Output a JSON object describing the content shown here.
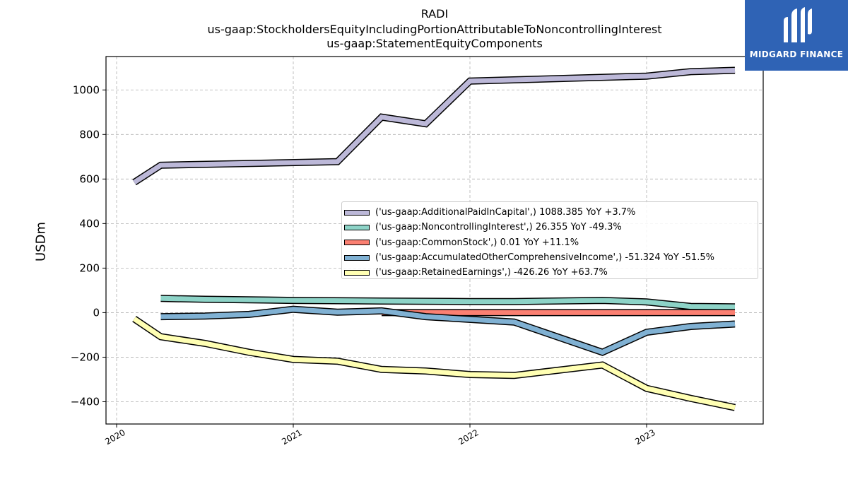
{
  "title": {
    "line1": "RADI",
    "line2": "us-gaap:StockholdersEquityIncludingPortionAttributableToNoncontrollingInterest",
    "line3": "us-gaap:StatementEquityComponents"
  },
  "logo": {
    "text": "MIDGARD FINANCE",
    "color": "#2f63b5"
  },
  "chart_data": {
    "type": "line",
    "ylabel": "USDm",
    "xlabel": "",
    "xlim": [
      2019.94,
      2023.66
    ],
    "ylim": [
      -500,
      1150
    ],
    "yticks": [
      -400,
      -200,
      0,
      200,
      400,
      600,
      800,
      1000
    ],
    "ytick_labels": [
      "−400",
      "−200",
      "0",
      "200",
      "400",
      "600",
      "800",
      "1000"
    ],
    "xticks": [
      2020,
      2021,
      2022,
      2023
    ],
    "xtick_labels": [
      "2020",
      "2021",
      "2022",
      "2023"
    ],
    "grid": true,
    "legend_position": "center-right",
    "series": [
      {
        "name": "('us-gaap:AdditionalPaidInCapital',) 1088.385 YoY +3.7%",
        "color": "#bcb8d8",
        "x": [
          2020.1,
          2020.25,
          2021.25,
          2021.5,
          2021.75,
          2022.0,
          2023.0,
          2023.25,
          2023.5
        ],
        "y": [
          585,
          662,
          678,
          878,
          848,
          1040,
          1062,
          1082,
          1088
        ]
      },
      {
        "name": "('us-gaap:NoncontrollingInterest',) 26.355 YoY -49.3%",
        "color": "#8dd3c7",
        "x": [
          2020.25,
          2020.5,
          2021.0,
          2021.5,
          2022.0,
          2022.25,
          2022.75,
          2023.0,
          2023.25,
          2023.5
        ],
        "y": [
          64,
          60,
          55,
          52,
          50,
          50,
          55,
          48,
          28,
          26
        ]
      },
      {
        "name": "('us-gaap:CommonStock',) 0.01 YoY +11.1%",
        "color": "#fb8072",
        "x": [
          2021.5,
          2023.5
        ],
        "y": [
          0.01,
          0.01
        ]
      },
      {
        "name": "('us-gaap:AccumulatedOtherComprehensiveIncome',) -51.324 YoY -51.5%",
        "color": "#80b1d3",
        "x": [
          2020.25,
          2020.5,
          2020.75,
          2021.0,
          2021.25,
          2021.5,
          2021.75,
          2022.25,
          2022.75,
          2023.0,
          2023.25,
          2023.5
        ],
        "y": [
          -18,
          -15,
          -8,
          15,
          2,
          8,
          -18,
          -42,
          -178,
          -88,
          -62,
          -51
        ]
      },
      {
        "name": "('us-gaap:RetainedEarnings',) -426.26 YoY +63.7%",
        "color": "#ffffb3",
        "x": [
          2020.1,
          2020.25,
          2020.5,
          2020.75,
          2021.0,
          2021.25,
          2021.5,
          2021.75,
          2022.0,
          2022.25,
          2022.75,
          2023.0,
          2023.25,
          2023.5
        ],
        "y": [
          -28,
          -108,
          -138,
          -178,
          -210,
          -218,
          -255,
          -262,
          -278,
          -282,
          -235,
          -340,
          -385,
          -426
        ]
      }
    ]
  }
}
